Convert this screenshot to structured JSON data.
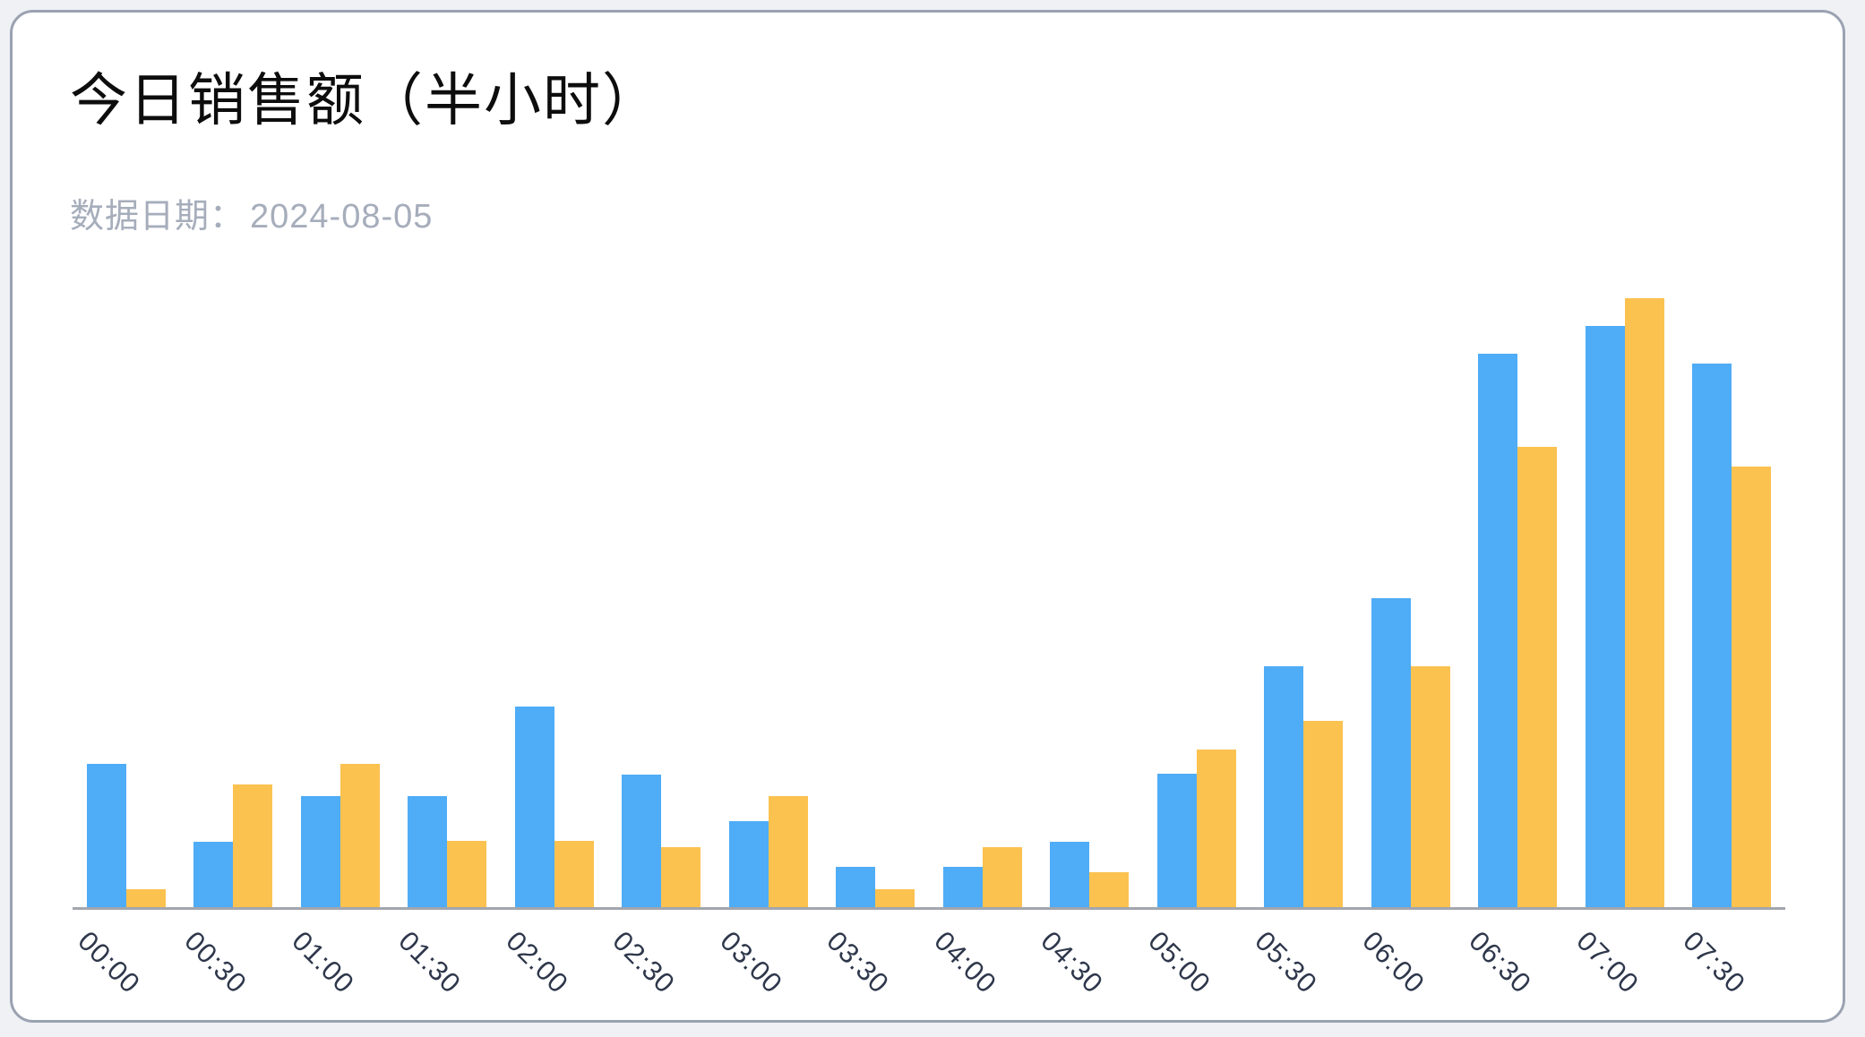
{
  "header": {
    "title": "今日销售额（半小时）",
    "subtitle_label": "数据日期：",
    "date": "2024-08-05"
  },
  "colors": {
    "series_blue": "#4facf6",
    "series_yellow": "#fbc250",
    "axis_line": "#a2a6ae",
    "axis_label": "#2e374b",
    "subtitle_text": "#a6adbb",
    "card_border": "#9aa2b2",
    "page_background": "#eff1f4"
  },
  "chart_data": {
    "type": "bar",
    "title": "今日销售额（半小时）",
    "subtitle": "数据日期：2024-08-05",
    "categories": [
      "00:00",
      "00:30",
      "01:00",
      "01:30",
      "02:00",
      "02:30",
      "03:00",
      "03:30",
      "04:00",
      "04:30",
      "05:00",
      "05:30",
      "06:00",
      "06:30",
      "07:00",
      "07:30"
    ],
    "series": [
      {
        "name": "blue",
        "color": "#4facf6",
        "values": [
          23.6,
          10.8,
          18.3,
          18.3,
          33.0,
          21.8,
          14.1,
          6.6,
          6.6,
          10.8,
          21.9,
          39.6,
          50.7,
          90.9,
          95.4,
          89.2
        ]
      },
      {
        "name": "yellow",
        "color": "#fbc250",
        "values": [
          2.9,
          20.2,
          23.6,
          10.9,
          10.9,
          9.9,
          18.3,
          2.9,
          9.9,
          5.8,
          25.9,
          30.6,
          39.6,
          75.6,
          100.0,
          72.3
        ]
      }
    ],
    "value_scale": "relative_percent_of_tallest_bar",
    "ylim": [
      0,
      100
    ],
    "y_axis_visible": false,
    "grid": false,
    "legend": false,
    "x_label_rotate": 45
  }
}
